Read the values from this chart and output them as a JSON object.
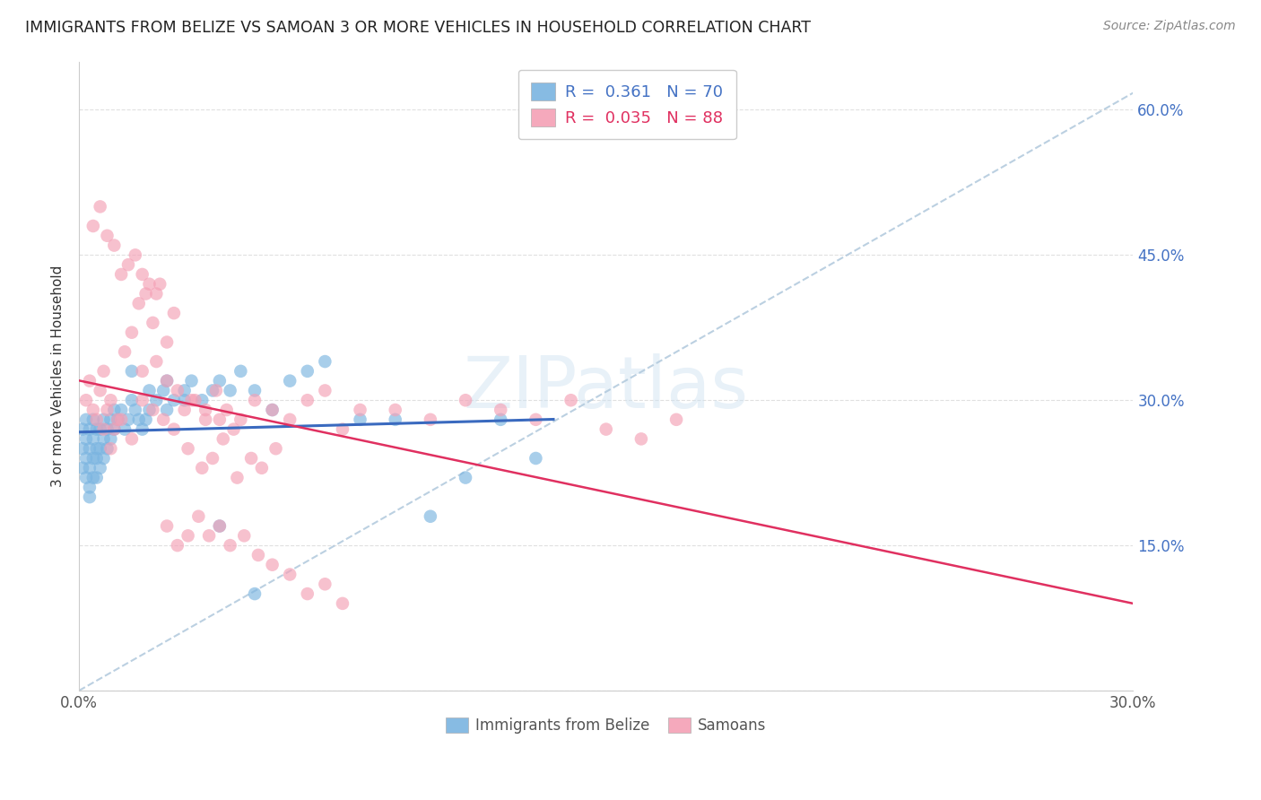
{
  "title": "IMMIGRANTS FROM BELIZE VS SAMOAN 3 OR MORE VEHICLES IN HOUSEHOLD CORRELATION CHART",
  "source": "Source: ZipAtlas.com",
  "ylabel": "3 or more Vehicles in Household",
  "watermark": "ZIPatlas",
  "legend_1_label": "Immigrants from Belize",
  "legend_2_label": "Samoans",
  "r1": 0.361,
  "n1": 70,
  "r2": 0.035,
  "n2": 88,
  "xmin": 0.0,
  "xmax": 0.3,
  "ymin": 0.0,
  "ymax": 0.65,
  "yticks": [
    0.0,
    0.15,
    0.3,
    0.45,
    0.6
  ],
  "xticks": [
    0.0,
    0.05,
    0.1,
    0.15,
    0.2,
    0.25,
    0.3
  ],
  "color_blue": "#7ab4e0",
  "color_pink": "#f4a0b5",
  "trendline_blue": "#3a6abf",
  "trendline_pink": "#e03060",
  "trendline_dashed": "#b0c8dc",
  "background_color": "#ffffff",
  "grid_color": "#dddddd",
  "title_color": "#222222",
  "right_axis_color": "#4472c4",
  "axis_label_color": "#555555",
  "belize_x": [
    0.001,
    0.001,
    0.001,
    0.002,
    0.002,
    0.002,
    0.002,
    0.003,
    0.003,
    0.003,
    0.003,
    0.003,
    0.004,
    0.004,
    0.004,
    0.004,
    0.005,
    0.005,
    0.005,
    0.005,
    0.006,
    0.006,
    0.006,
    0.007,
    0.007,
    0.007,
    0.008,
    0.008,
    0.009,
    0.009,
    0.01,
    0.01,
    0.011,
    0.012,
    0.013,
    0.014,
    0.015,
    0.016,
    0.017,
    0.018,
    0.019,
    0.02,
    0.022,
    0.024,
    0.025,
    0.027,
    0.03,
    0.032,
    0.035,
    0.038,
    0.04,
    0.043,
    0.046,
    0.05,
    0.055,
    0.06,
    0.065,
    0.07,
    0.08,
    0.09,
    0.1,
    0.11,
    0.12,
    0.13,
    0.015,
    0.02,
    0.025,
    0.03,
    0.04,
    0.05
  ],
  "belize_y": [
    0.27,
    0.25,
    0.23,
    0.28,
    0.26,
    0.24,
    0.22,
    0.27,
    0.25,
    0.23,
    0.21,
    0.2,
    0.28,
    0.26,
    0.24,
    0.22,
    0.27,
    0.25,
    0.24,
    0.22,
    0.27,
    0.25,
    0.23,
    0.28,
    0.26,
    0.24,
    0.27,
    0.25,
    0.28,
    0.26,
    0.29,
    0.27,
    0.28,
    0.29,
    0.27,
    0.28,
    0.3,
    0.29,
    0.28,
    0.27,
    0.28,
    0.29,
    0.3,
    0.31,
    0.29,
    0.3,
    0.31,
    0.32,
    0.3,
    0.31,
    0.32,
    0.31,
    0.33,
    0.31,
    0.29,
    0.32,
    0.33,
    0.34,
    0.28,
    0.28,
    0.18,
    0.22,
    0.28,
    0.24,
    0.33,
    0.31,
    0.32,
    0.3,
    0.17,
    0.1
  ],
  "samoan_x": [
    0.002,
    0.003,
    0.004,
    0.005,
    0.006,
    0.007,
    0.008,
    0.009,
    0.01,
    0.011,
    0.013,
    0.015,
    0.017,
    0.019,
    0.021,
    0.023,
    0.025,
    0.027,
    0.03,
    0.033,
    0.036,
    0.039,
    0.042,
    0.046,
    0.05,
    0.055,
    0.06,
    0.065,
    0.07,
    0.075,
    0.08,
    0.09,
    0.1,
    0.11,
    0.12,
    0.13,
    0.14,
    0.15,
    0.16,
    0.17,
    0.004,
    0.006,
    0.008,
    0.01,
    0.012,
    0.014,
    0.016,
    0.018,
    0.02,
    0.022,
    0.025,
    0.028,
    0.031,
    0.034,
    0.037,
    0.04,
    0.043,
    0.047,
    0.051,
    0.055,
    0.007,
    0.009,
    0.012,
    0.015,
    0.018,
    0.021,
    0.024,
    0.027,
    0.031,
    0.035,
    0.038,
    0.041,
    0.045,
    0.049,
    0.052,
    0.056,
    0.06,
    0.065,
    0.07,
    0.075,
    0.018,
    0.022,
    0.025,
    0.028,
    0.032,
    0.036,
    0.04,
    0.044
  ],
  "samoan_y": [
    0.3,
    0.32,
    0.29,
    0.28,
    0.31,
    0.33,
    0.29,
    0.3,
    0.27,
    0.28,
    0.35,
    0.37,
    0.4,
    0.41,
    0.38,
    0.42,
    0.36,
    0.39,
    0.29,
    0.3,
    0.28,
    0.31,
    0.29,
    0.28,
    0.3,
    0.29,
    0.28,
    0.3,
    0.31,
    0.27,
    0.29,
    0.29,
    0.28,
    0.3,
    0.29,
    0.28,
    0.3,
    0.27,
    0.26,
    0.28,
    0.48,
    0.5,
    0.47,
    0.46,
    0.43,
    0.44,
    0.45,
    0.43,
    0.42,
    0.41,
    0.17,
    0.15,
    0.16,
    0.18,
    0.16,
    0.17,
    0.15,
    0.16,
    0.14,
    0.13,
    0.27,
    0.25,
    0.28,
    0.26,
    0.3,
    0.29,
    0.28,
    0.27,
    0.25,
    0.23,
    0.24,
    0.26,
    0.22,
    0.24,
    0.23,
    0.25,
    0.12,
    0.1,
    0.11,
    0.09,
    0.33,
    0.34,
    0.32,
    0.31,
    0.3,
    0.29,
    0.28,
    0.27
  ]
}
